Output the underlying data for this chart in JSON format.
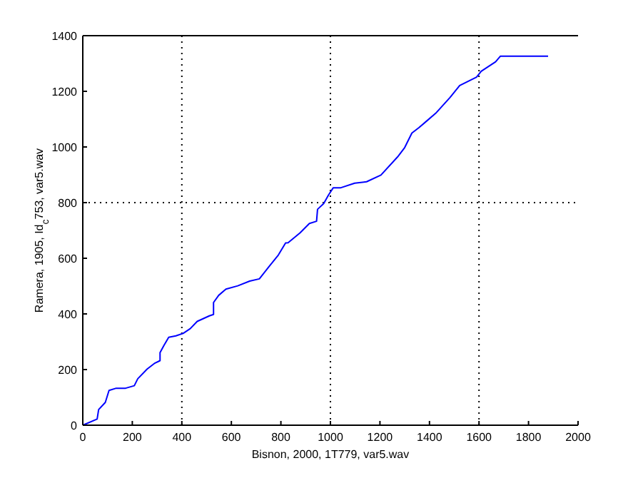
{
  "chart_data": {
    "type": "line",
    "xlabel": "Bisnon, 2000, 1T779, var5.wav",
    "ylabel": "Ramera, 1905, Id$_{c}$753, var5.wav",
    "xlim": [
      0,
      2000
    ],
    "xticks": [
      0,
      200,
      400,
      600,
      800,
      1000,
      1200,
      1400,
      1600,
      1800,
      2000
    ],
    "ylim": [
      0,
      1400
    ],
    "yticks": [
      0,
      200,
      400,
      600,
      800,
      1000,
      1200,
      1400
    ],
    "grid": false,
    "marker": "none",
    "line_style": "solid",
    "ref_lines": [
      {
        "axis": "x",
        "value": 400,
        "line_style": "dotted",
        "color": "#000000"
      },
      {
        "axis": "x",
        "value": 1000,
        "line_style": "dotted",
        "color": "#000000"
      },
      {
        "axis": "x",
        "value": 1600,
        "line_style": "dotted",
        "color": "#000000"
      },
      {
        "axis": "y",
        "value": 800,
        "line_style": "dotted",
        "color": "#000000"
      }
    ],
    "series": [
      {
        "color": "#0000ff",
        "x": [
          0,
          58,
          64,
          91,
          106,
          135,
          173,
          208,
          222,
          260,
          289,
          312,
          312,
          328,
          347,
          376,
          405,
          434,
          462,
          511,
          528,
          528,
          549,
          578,
          626,
          674,
          713,
          751,
          790,
          819,
          829,
          877,
          915,
          944,
          948,
          973,
          992,
          1011,
          1040,
          1098,
          1146,
          1204,
          1271,
          1300,
          1329,
          1358,
          1387,
          1425,
          1483,
          1522,
          1590,
          1609,
          1667,
          1686,
          1879
        ],
        "values": [
          0,
          22,
          56,
          82,
          125,
          133,
          133,
          142,
          167,
          202,
          222,
          232,
          261,
          287,
          316,
          321,
          330,
          347,
          373,
          393,
          398,
          441,
          467,
          489,
          501,
          518,
          526,
          569,
          612,
          655,
          656,
          691,
          725,
          733,
          776,
          797,
          827,
          853,
          853,
          870,
          875,
          899,
          964,
          998,
          1050,
          1070,
          1092,
          1121,
          1178,
          1221,
          1251,
          1272,
          1306,
          1326,
          1326
        ]
      }
    ]
  }
}
